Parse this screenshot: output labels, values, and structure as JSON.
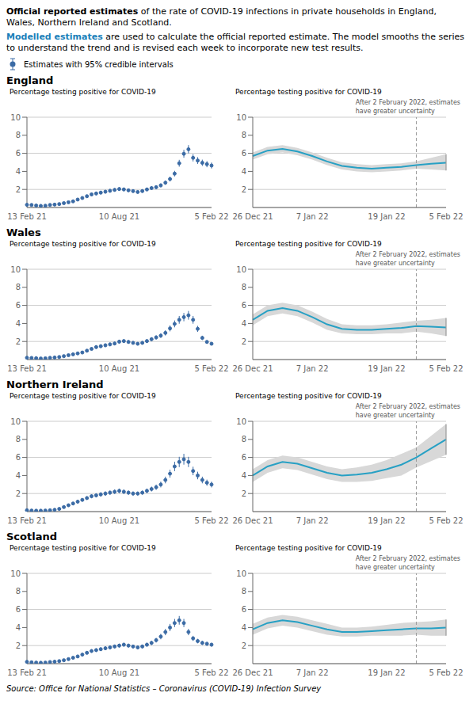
{
  "title": [
    "Official reported estimates",
    " of the rate of COVID-19 infections in private households in England, Wales, Northern Ireland and Scotland."
  ],
  "subtitle": [
    "Modelled estimates",
    " are used to calculate the official reported estimate. The model smooths the series to understand the trend and is revised each week to incorporate new test results."
  ],
  "annotations": [
    "Source: Office for National Statistics – Coronavirus (COVID-19) Infection Survey"
  ],
  "chart_data": [
    {
      "title": "England",
      "type": "scatter",
      "ylabel": "Percentage testing positive for COVID-19",
      "categories": [
        "13 Feb 21",
        null,
        null,
        null,
        null,
        null,
        null,
        null,
        null,
        null,
        null,
        null,
        null,
        null,
        null,
        null,
        null,
        null,
        null,
        null,
        "10 Aug 21",
        null,
        null,
        null,
        null,
        null,
        null,
        null,
        null,
        null,
        null,
        null,
        null,
        null,
        null,
        null,
        null,
        null,
        null,
        null,
        "5 Feb 22"
      ],
      "series": [
        {
          "name": "Estimates with 95% credible intervals",
          "color": "#3B6BA5",
          "values": [
            0.3,
            0.28,
            0.22,
            0.18,
            0.2,
            0.28,
            0.32,
            0.38,
            0.48,
            0.58,
            0.68,
            0.88,
            1.05,
            1.25,
            1.45,
            1.55,
            1.65,
            1.75,
            1.85,
            1.95,
            2.05,
            2.0,
            1.9,
            1.82,
            1.72,
            1.82,
            2.0,
            2.15,
            2.25,
            2.45,
            2.75,
            3.15,
            3.75,
            4.9,
            5.95,
            6.45,
            5.5,
            5.2,
            4.95,
            4.8,
            4.65
          ],
          "error": [
            0.08,
            0.07,
            0.06,
            0.06,
            0.06,
            0.07,
            0.07,
            0.08,
            0.09,
            0.1,
            0.11,
            0.13,
            0.15,
            0.17,
            0.19,
            0.2,
            0.2,
            0.2,
            0.2,
            0.2,
            0.2,
            0.2,
            0.19,
            0.18,
            0.17,
            0.18,
            0.19,
            0.2,
            0.21,
            0.22,
            0.24,
            0.27,
            0.31,
            0.38,
            0.44,
            0.46,
            0.4,
            0.37,
            0.35,
            0.34,
            0.33
          ]
        }
      ],
      "ylim": [
        0,
        10
      ],
      "yticks": [
        2,
        4,
        6,
        8,
        10
      ],
      "grid": true
    },
    {
      "type": "line",
      "ylabel": "Percentage testing positive for COVID-19",
      "annotations": [
        "After 2 February 2022, estimates\nhave greater uncertainty"
      ],
      "categories": [
        "26 Dec 21",
        null,
        null,
        null,
        "7 Jan 22",
        null,
        null,
        null,
        null,
        "19 Jan 22",
        null,
        null,
        null,
        "5 Feb 22"
      ],
      "series": [
        {
          "color": "#27A0C4",
          "values": [
            5.7,
            6.3,
            6.5,
            6.2,
            5.7,
            5.1,
            4.6,
            4.4,
            4.3,
            4.4,
            4.5,
            4.7,
            4.85,
            4.95
          ],
          "ci_upper": [
            6.1,
            6.7,
            6.9,
            6.6,
            6.1,
            5.5,
            5.0,
            4.8,
            4.7,
            4.8,
            4.9,
            5.1,
            5.5,
            5.9
          ],
          "ci_lower": [
            5.3,
            5.9,
            6.1,
            5.8,
            5.3,
            4.7,
            4.2,
            4.0,
            3.9,
            4.0,
            4.1,
            4.3,
            4.2,
            4.1
          ]
        }
      ],
      "ylim": [
        0,
        10
      ],
      "yticks": [
        2,
        4,
        6,
        8,
        10
      ],
      "grid": true
    },
    {
      "title": "Wales",
      "type": "scatter",
      "ylabel": "Percentage testing positive for COVID-19",
      "categories": [
        "13 Feb 21",
        null,
        null,
        null,
        null,
        null,
        null,
        null,
        null,
        null,
        null,
        null,
        null,
        null,
        null,
        null,
        null,
        null,
        null,
        null,
        "10 Aug 21",
        null,
        null,
        null,
        null,
        null,
        null,
        null,
        null,
        null,
        null,
        null,
        null,
        null,
        null,
        null,
        null,
        null,
        null,
        null,
        "5 Feb 22"
      ],
      "series": [
        {
          "name": "Estimates with 95% credible intervals",
          "color": "#3B6BA5",
          "values": [
            0.2,
            0.18,
            0.15,
            0.12,
            0.14,
            0.19,
            0.23,
            0.28,
            0.38,
            0.48,
            0.58,
            0.68,
            0.78,
            0.98,
            1.18,
            1.38,
            1.48,
            1.58,
            1.68,
            1.78,
            1.98,
            2.05,
            1.95,
            1.85,
            1.75,
            1.85,
            2.05,
            2.25,
            2.45,
            2.65,
            2.95,
            3.45,
            3.95,
            4.4,
            4.7,
            4.9,
            4.4,
            3.4,
            2.4,
            1.95,
            1.75
          ],
          "error": [
            0.07,
            0.06,
            0.05,
            0.05,
            0.05,
            0.06,
            0.07,
            0.08,
            0.09,
            0.1,
            0.11,
            0.12,
            0.13,
            0.15,
            0.17,
            0.19,
            0.2,
            0.2,
            0.2,
            0.2,
            0.21,
            0.21,
            0.2,
            0.19,
            0.18,
            0.19,
            0.21,
            0.22,
            0.24,
            0.26,
            0.29,
            0.33,
            0.38,
            0.43,
            0.46,
            0.48,
            0.43,
            0.33,
            0.24,
            0.19,
            0.17
          ]
        }
      ],
      "ylim": [
        0,
        10
      ],
      "yticks": [
        2,
        4,
        6,
        8,
        10
      ],
      "grid": true
    },
    {
      "type": "line",
      "ylabel": "Percentage testing positive for COVID-19",
      "annotations": [
        "After 2 February 2022, estimates\nhave greater uncertainty"
      ],
      "categories": [
        "26 Dec 21",
        null,
        null,
        null,
        "7 Jan 22",
        null,
        null,
        null,
        null,
        "19 Jan 22",
        null,
        null,
        null,
        "5 Feb 22"
      ],
      "series": [
        {
          "color": "#27A0C4",
          "values": [
            4.4,
            5.4,
            5.7,
            5.4,
            4.7,
            3.9,
            3.4,
            3.3,
            3.3,
            3.4,
            3.5,
            3.7,
            3.65,
            3.55
          ],
          "ci_upper": [
            5.0,
            6.0,
            6.3,
            6.0,
            5.3,
            4.5,
            3.9,
            3.8,
            3.8,
            3.9,
            4.1,
            4.3,
            4.4,
            4.6
          ],
          "ci_lower": [
            3.8,
            4.8,
            5.1,
            4.8,
            4.1,
            3.3,
            2.9,
            2.8,
            2.8,
            2.9,
            2.9,
            3.1,
            2.9,
            2.6
          ]
        }
      ],
      "ylim": [
        0,
        10
      ],
      "yticks": [
        2,
        4,
        6,
        8,
        10
      ],
      "grid": true
    },
    {
      "title": "Northern Ireland",
      "type": "scatter",
      "ylabel": "Percentage testing positive for COVID-19",
      "categories": [
        "13 Feb 21",
        null,
        null,
        null,
        null,
        null,
        null,
        null,
        null,
        null,
        null,
        null,
        null,
        null,
        null,
        null,
        null,
        null,
        null,
        null,
        "10 Aug 21",
        null,
        null,
        null,
        null,
        null,
        null,
        null,
        null,
        null,
        null,
        null,
        null,
        null,
        null,
        null,
        null,
        null,
        null,
        null,
        "5 Feb 22"
      ],
      "series": [
        {
          "name": "Estimates with 95% credible intervals",
          "color": "#3B6BA5",
          "values": [
            0.15,
            0.12,
            0.1,
            0.1,
            0.12,
            0.15,
            0.2,
            0.3,
            0.5,
            0.7,
            0.9,
            1.1,
            1.3,
            1.5,
            1.7,
            1.8,
            1.9,
            2.0,
            2.1,
            2.2,
            2.3,
            2.2,
            2.1,
            2.0,
            2.0,
            2.1,
            2.3,
            2.5,
            2.7,
            3.0,
            3.5,
            4.2,
            5.0,
            5.5,
            5.8,
            5.5,
            4.5,
            4.0,
            3.5,
            3.2,
            3.0
          ],
          "error": [
            0.06,
            0.05,
            0.05,
            0.05,
            0.05,
            0.06,
            0.07,
            0.08,
            0.1,
            0.12,
            0.14,
            0.16,
            0.18,
            0.2,
            0.22,
            0.23,
            0.24,
            0.24,
            0.24,
            0.25,
            0.25,
            0.25,
            0.24,
            0.23,
            0.22,
            0.23,
            0.25,
            0.27,
            0.29,
            0.32,
            0.37,
            0.44,
            0.52,
            0.57,
            0.6,
            0.57,
            0.47,
            0.42,
            0.37,
            0.34,
            0.32
          ]
        }
      ],
      "ylim": [
        0,
        10
      ],
      "yticks": [
        2,
        4,
        6,
        8,
        10
      ],
      "grid": true
    },
    {
      "type": "line",
      "ylabel": "Percentage testing positive for COVID-19",
      "annotations": [
        "After 2 February 2022, estimates\nhave greater uncertainty"
      ],
      "categories": [
        "26 Dec 21",
        null,
        null,
        null,
        "7 Jan 22",
        null,
        null,
        null,
        null,
        "19 Jan 22",
        null,
        null,
        null,
        "5 Feb 22"
      ],
      "series": [
        {
          "color": "#27A0C4",
          "values": [
            4.0,
            5.0,
            5.5,
            5.3,
            4.8,
            4.3,
            4.0,
            4.1,
            4.3,
            4.7,
            5.2,
            6.0,
            7.0,
            8.0
          ],
          "ci_upper": [
            4.7,
            5.7,
            6.2,
            6.0,
            5.5,
            5.0,
            4.7,
            4.9,
            5.2,
            5.7,
            6.4,
            7.1,
            8.4,
            9.7
          ],
          "ci_lower": [
            3.3,
            4.3,
            4.8,
            4.6,
            4.1,
            3.6,
            3.3,
            3.3,
            3.4,
            3.7,
            4.0,
            4.9,
            5.6,
            6.3
          ]
        }
      ],
      "ylim": [
        0,
        10
      ],
      "yticks": [
        2,
        4,
        6,
        8,
        10
      ],
      "grid": true
    },
    {
      "title": "Scotland",
      "type": "scatter",
      "ylabel": "Percentage testing positive for COVID-19",
      "categories": [
        "13 Feb 21",
        null,
        null,
        null,
        null,
        null,
        null,
        null,
        null,
        null,
        null,
        null,
        null,
        null,
        null,
        null,
        null,
        null,
        null,
        null,
        "10 Aug 21",
        null,
        null,
        null,
        null,
        null,
        null,
        null,
        null,
        null,
        null,
        null,
        null,
        null,
        null,
        null,
        null,
        null,
        null,
        null,
        "5 Feb 22"
      ],
      "series": [
        {
          "name": "Estimates with 95% credible intervals",
          "color": "#3B6BA5",
          "values": [
            0.2,
            0.15,
            0.12,
            0.1,
            0.12,
            0.18,
            0.22,
            0.28,
            0.38,
            0.5,
            0.65,
            0.8,
            1.0,
            1.2,
            1.4,
            1.5,
            1.6,
            1.7,
            1.8,
            1.9,
            2.0,
            2.1,
            2.0,
            1.9,
            1.8,
            1.9,
            2.1,
            2.3,
            2.6,
            3.0,
            3.5,
            4.0,
            4.5,
            4.8,
            4.5,
            3.5,
            2.8,
            2.5,
            2.3,
            2.2,
            2.1
          ],
          "error": [
            0.07,
            0.06,
            0.05,
            0.05,
            0.05,
            0.06,
            0.07,
            0.08,
            0.09,
            0.1,
            0.12,
            0.13,
            0.15,
            0.17,
            0.19,
            0.2,
            0.2,
            0.21,
            0.21,
            0.21,
            0.21,
            0.22,
            0.21,
            0.2,
            0.19,
            0.2,
            0.22,
            0.24,
            0.26,
            0.3,
            0.35,
            0.4,
            0.45,
            0.48,
            0.45,
            0.35,
            0.28,
            0.25,
            0.23,
            0.22,
            0.21
          ]
        }
      ],
      "ylim": [
        0,
        10
      ],
      "yticks": [
        2,
        4,
        6,
        8,
        10
      ],
      "grid": true
    },
    {
      "type": "line",
      "ylabel": "Percentage testing positive for COVID-19",
      "annotations": [
        "After 2 February 2022, estimates\nhave greater uncertainty"
      ],
      "categories": [
        "26 Dec 21",
        null,
        null,
        null,
        "7 Jan 22",
        null,
        null,
        null,
        null,
        "19 Jan 22",
        null,
        null,
        null,
        "5 Feb 22"
      ],
      "series": [
        {
          "color": "#27A0C4",
          "values": [
            3.8,
            4.5,
            4.8,
            4.6,
            4.2,
            3.8,
            3.5,
            3.5,
            3.6,
            3.7,
            3.8,
            3.9,
            3.9,
            4.0
          ],
          "ci_upper": [
            4.4,
            5.1,
            5.4,
            5.2,
            4.8,
            4.4,
            4.0,
            4.0,
            4.1,
            4.3,
            4.5,
            4.6,
            4.7,
            4.9
          ],
          "ci_lower": [
            3.2,
            3.9,
            4.2,
            4.0,
            3.6,
            3.2,
            3.0,
            3.0,
            3.1,
            3.1,
            3.1,
            3.2,
            3.1,
            3.1
          ]
        }
      ],
      "ylim": [
        0,
        10
      ],
      "yticks": [
        2,
        4,
        6,
        8,
        10
      ],
      "grid": true
    }
  ]
}
